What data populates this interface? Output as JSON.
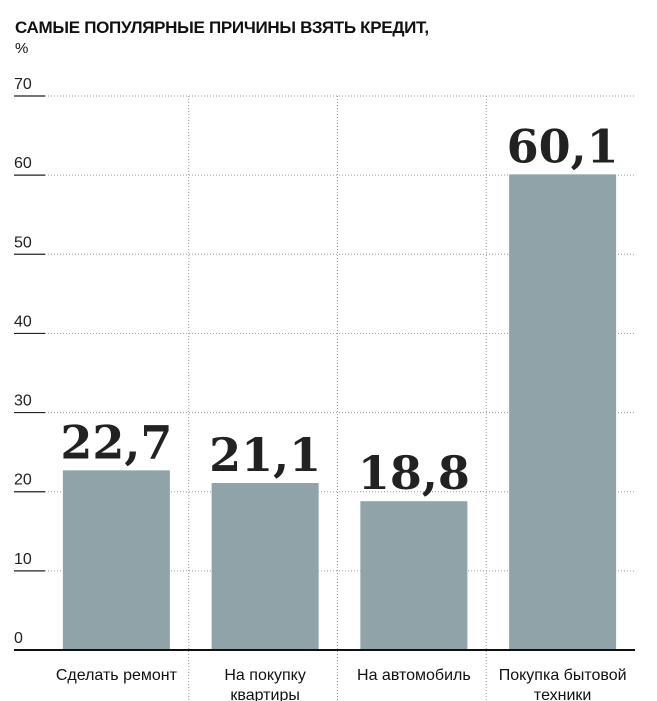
{
  "chart_data": {
    "type": "bar",
    "title": "САМЫЕ ПОПУЛЯРНЫЕ ПРИЧИНЫ ВЗЯТЬ КРЕДИТ,",
    "unit": "%",
    "categories": [
      [
        "Сделать ремонт"
      ],
      [
        "На покупку",
        "квартиры"
      ],
      [
        "На автомобиль"
      ],
      [
        "Покупка бытовой",
        "техники"
      ]
    ],
    "values": [
      22.7,
      21.1,
      18.8,
      60.1
    ],
    "value_labels": [
      "22,7",
      "21,1",
      "18,8",
      "60,1"
    ],
    "yticks": [
      "0",
      "10",
      "20",
      "30",
      "40",
      "50",
      "60",
      "70"
    ],
    "ylim": [
      0,
      70
    ],
    "grid": true,
    "bar_color": "#8fa3a9"
  }
}
